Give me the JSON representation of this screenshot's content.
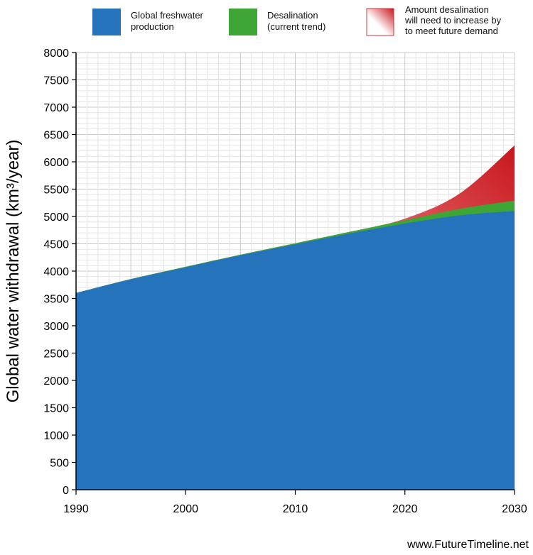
{
  "chart_data": {
    "type": "area",
    "title": "",
    "xlabel": "",
    "ylabel": "Global water withdrawal (km³/year)",
    "xlim": [
      1990,
      2030
    ],
    "ylim": [
      0,
      8000
    ],
    "x_ticks": [
      1990,
      2000,
      2010,
      2020,
      2030
    ],
    "y_ticks": [
      0,
      500,
      1000,
      1500,
      2000,
      2500,
      3000,
      3500,
      4000,
      4500,
      5000,
      5500,
      6000,
      6500,
      7000,
      7500,
      8000
    ],
    "grid": true,
    "legend_position": "top",
    "x": [
      1990,
      1995,
      2000,
      2005,
      2010,
      2015,
      2020,
      2025,
      2030
    ],
    "series": [
      {
        "name": "Global freshwater production",
        "color": "#2473bb",
        "values": [
          3600,
          3850,
          4070,
          4290,
          4490,
          4690,
          4870,
          5020,
          5100
        ]
      },
      {
        "name": "Desalination (current trend)",
        "color": "#3fa535",
        "values": [
          3600,
          3855,
          4080,
          4300,
          4510,
          4720,
          4930,
          5140,
          5290
        ]
      },
      {
        "name": "Amount desalination will need to increase by to meet future demand",
        "color": "#cc1f24",
        "values": [
          3600,
          3855,
          4080,
          4300,
          4510,
          4720,
          4960,
          5420,
          6300
        ]
      }
    ],
    "legend": [
      {
        "label_lines": [
          "Global freshwater",
          "production"
        ],
        "color": "#2473bb"
      },
      {
        "label_lines": [
          "Desalination",
          "(current trend)"
        ],
        "color": "#3fa535"
      },
      {
        "label_lines": [
          "Amount desalination",
          "will need to increase by",
          "to meet future demand"
        ],
        "color": "#cc1f24"
      }
    ]
  },
  "source": "www.FutureTimeline.net"
}
